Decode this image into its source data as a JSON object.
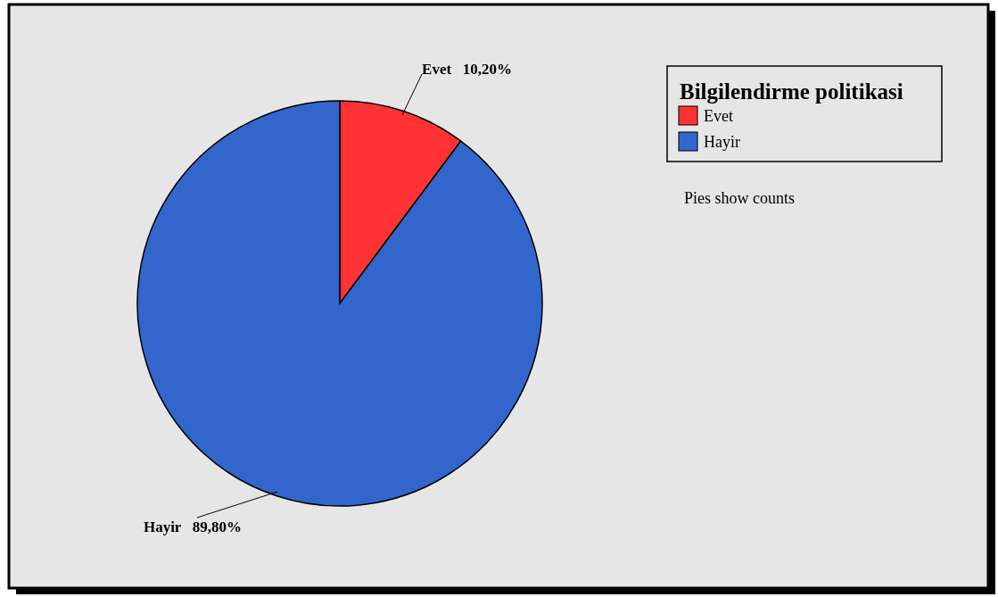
{
  "chart_data": {
    "type": "pie",
    "categories": [
      "Evet",
      "Hayir"
    ],
    "values": [
      10.2,
      89.8
    ],
    "colors": [
      "#ff3333",
      "#3366cc"
    ],
    "value_labels": [
      "10,20%",
      "89,80%"
    ],
    "legend": "top right",
    "legend_title": "Bilgilendirme politikasi",
    "annotations": [
      "Pies show counts"
    ]
  }
}
